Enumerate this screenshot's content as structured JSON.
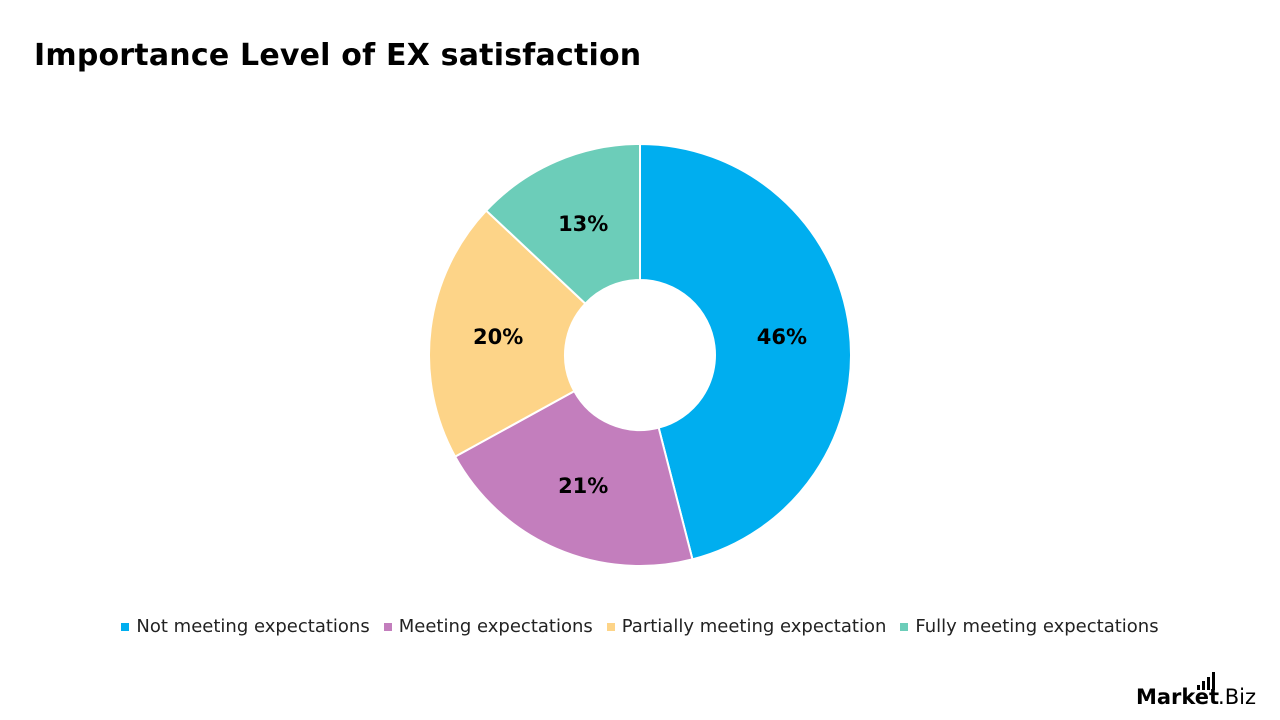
{
  "title": "Importance Level of EX satisfaction",
  "chart_data": {
    "type": "pie",
    "variant": "donut",
    "title": "Importance Level of EX satisfaction",
    "categories": [
      "Not meeting expectations",
      "Meeting expectations",
      "Partially meeting expectation",
      "Fully meeting expectations"
    ],
    "values": [
      46,
      21,
      20,
      13
    ],
    "labels": [
      "46%",
      "21%",
      "20%",
      "13%"
    ],
    "colors": [
      "#00AEEF",
      "#C37EBD",
      "#FDD488",
      "#6CCDB9"
    ],
    "legend_position": "bottom",
    "start": "top",
    "direction": "clockwise"
  },
  "legend": [
    {
      "label": "Not meeting expectations",
      "color": "#00AEEF"
    },
    {
      "label": "Meeting expectations",
      "color": "#C37EBD"
    },
    {
      "label": "Partially meeting expectation",
      "color": "#FDD488"
    },
    {
      "label": "Fully meeting expectations",
      "color": "#6CCDB9"
    }
  ],
  "brand": {
    "bold": "Market",
    "light": ".Biz",
    "icon": "bar-chart-icon"
  }
}
